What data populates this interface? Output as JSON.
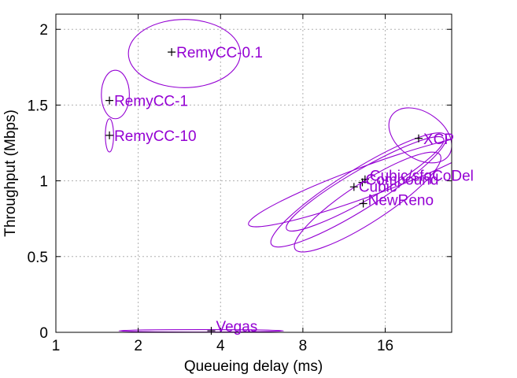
{
  "chart_data": {
    "type": "scatter",
    "title": "",
    "xlabel": "Queueing delay (ms)",
    "ylabel": "Throughput (Mbps)",
    "xscale": "log2",
    "x_reversed": false,
    "xlim": [
      1,
      28
    ],
    "ylim": [
      0,
      2.1
    ],
    "xticks": [
      1,
      2,
      4,
      8,
      16
    ],
    "xtick_labels": [
      "1",
      "2",
      "4",
      "8",
      "16"
    ],
    "yticks": [
      0,
      0.5,
      1,
      1.5,
      2
    ],
    "ytick_labels": [
      "0",
      "0.5",
      "1",
      "1.5",
      "2"
    ],
    "grid": true,
    "label_color": "#9400d3",
    "marker_color": "#000000",
    "series": [
      {
        "name": "RemyCC-0.1",
        "x": 2.65,
        "y": 1.85,
        "ellipse": {
          "rx_log2": 0.68,
          "ry": 0.225,
          "angle_deg": 0,
          "cx": 2.95,
          "cy": 1.84
        }
      },
      {
        "name": "RemyCC-1",
        "x": 1.57,
        "y": 1.53,
        "ellipse": {
          "rx_log2": 0.17,
          "ry": 0.16,
          "angle_deg": 0,
          "cx": 1.65,
          "cy": 1.57
        }
      },
      {
        "name": "RemyCC-10",
        "x": 1.57,
        "y": 1.3,
        "ellipse": {
          "rx_log2": 0.05,
          "ry": 0.11,
          "angle_deg": 0,
          "cx": 1.57,
          "cy": 1.3
        }
      },
      {
        "name": "XCP",
        "x": 21.2,
        "y": 1.28,
        "ellipse": {
          "rx_log2": 0.28,
          "ry": 0.23,
          "angle_deg": -55,
          "cx": 21.5,
          "cy": 1.3
        }
      },
      {
        "name": "Cubic/sfqCoDel",
        "x": 13.5,
        "y": 1.01,
        "ellipse": {
          "rx_log2": 1.55,
          "ry": 0.1,
          "angle_deg": -20,
          "cx": 13.9,
          "cy": 1.0
        }
      },
      {
        "name": "Compound",
        "x": 13.2,
        "y": 0.99,
        "ellipse": {
          "rx_log2": 1.1,
          "ry": 0.1,
          "angle_deg": -30,
          "cx": 13.5,
          "cy": 0.98
        }
      },
      {
        "name": "Cubic",
        "x": 12.3,
        "y": 0.96,
        "ellipse": {
          "rx_log2": 1.25,
          "ry": 0.13,
          "angle_deg": -32,
          "cx": 12.8,
          "cy": 0.94
        }
      },
      {
        "name": "NewReno",
        "x": 13.3,
        "y": 0.85,
        "ellipse": {
          "rx_log2": 1.05,
          "ry": 0.13,
          "angle_deg": -33,
          "cx": 13.8,
          "cy": 0.86
        }
      },
      {
        "name": "Vegas",
        "x": 3.7,
        "y": 0.01,
        "ellipse": {
          "rx_log2": 1.0,
          "ry": 0.008,
          "angle_deg": 0,
          "cx": 3.4,
          "cy": 0.01
        }
      }
    ]
  }
}
